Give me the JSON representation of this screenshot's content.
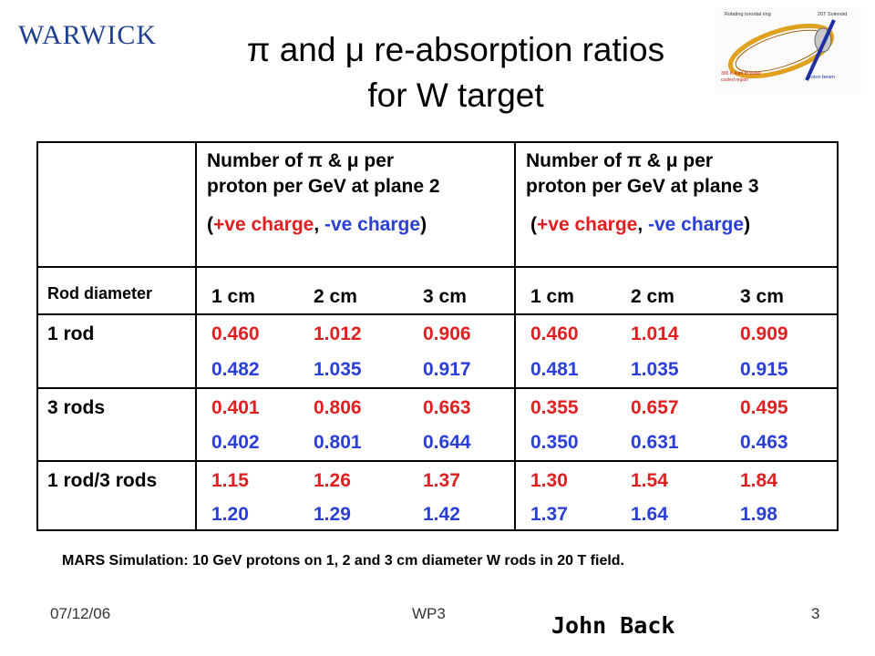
{
  "logo_text": "WARWICK",
  "title_line1": "π and μ re-absorption ratios",
  "title_line2": "for W target",
  "diagram": {
    "label_top_left": "Rotating toroidal ring",
    "label_top_right": "20T Solenoid",
    "label_bottom_left_1": "300 K Inert to water",
    "label_bottom_left_2": "cooled region",
    "label_bottom_right": "proton beam",
    "colors": {
      "ring": "#e0a020",
      "beam": "#2030a0"
    }
  },
  "table": {
    "plane2_header": [
      "Number of π & μ per",
      "proton per GeV at plane 2"
    ],
    "plane3_header": [
      "Number of π & μ per",
      "proton per GeV at plane 3"
    ],
    "charge_open": "(",
    "charge_pos": "+ve charge",
    "charge_sep": ", ",
    "charge_neg": "-ve charge",
    "charge_close": ")",
    "rod_diameter_label": "Rod diameter",
    "columns": [
      "1 cm",
      "2 cm",
      "3 cm"
    ],
    "rows": [
      {
        "label": "1 rod",
        "plane2_pos": [
          "0.460",
          "1.012",
          "0.906"
        ],
        "plane2_neg": [
          "0.482",
          "1.035",
          "0.917"
        ],
        "plane3_pos": [
          "0.460",
          "1.014",
          "0.909"
        ],
        "plane3_neg": [
          "0.481",
          "1.035",
          "0.915"
        ]
      },
      {
        "label": "3 rods",
        "plane2_pos": [
          "0.401",
          "0.806",
          "0.663"
        ],
        "plane2_neg": [
          "0.402",
          "0.801",
          "0.644"
        ],
        "plane3_pos": [
          "0.355",
          "0.657",
          "0.495"
        ],
        "plane3_neg": [
          "0.350",
          "0.631",
          "0.463"
        ]
      },
      {
        "label": "1 rod/3 rods",
        "plane2_pos": [
          "1.15",
          "1.26",
          "1.37"
        ],
        "plane2_neg": [
          "1.20",
          "1.29",
          "1.42"
        ],
        "plane3_pos": [
          "1.30",
          "1.54",
          "1.84"
        ],
        "plane3_neg": [
          "1.37",
          "1.64",
          "1.98"
        ]
      }
    ],
    "colors": {
      "positive": "#e02020",
      "negative": "#2a3fd6"
    }
  },
  "footnote": "MARS Simulation: 10 GeV protons on 1, 2 and 3 cm diameter W rods in 20 T field.",
  "footer": {
    "date": "07/12/06",
    "center": "WP3",
    "page": "3"
  },
  "author": "John Back"
}
